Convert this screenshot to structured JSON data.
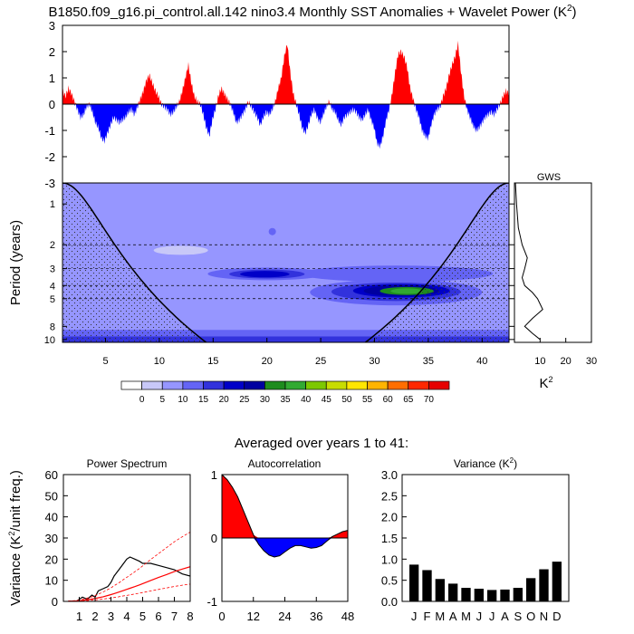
{
  "title": "B1850.f09_g16.pi_control.all.142 nino3.4 Monthly SST Anomalies + Wavelet Power (K",
  "title_sup": "2",
  "title_end": ")",
  "subtitle": "Averaged over years 1 to 41:",
  "colors": {
    "positive": "#ff0000",
    "negative": "#0000ff",
    "black": "#000000"
  },
  "chart_data": [
    {
      "type": "area",
      "name": "sst_anomaly_timeseries",
      "xlim": [
        1,
        42.5
      ],
      "ylim": [
        -3,
        3
      ],
      "yticks": [
        "3",
        "2",
        "1",
        "0",
        "-1",
        "-2",
        "-3"
      ],
      "y": [
        0.5,
        0.3,
        0.6,
        0.4,
        0.1,
        -0.2,
        -0.5,
        -0.4,
        -0.1,
        0.0,
        -0.3,
        -0.7,
        -0.9,
        -1.3,
        -1.4,
        -1.1,
        -0.8,
        -0.5,
        -0.6,
        -0.7,
        -0.6,
        -0.5,
        -0.3,
        -0.2,
        -0.4,
        -0.1,
        0.2,
        0.5,
        0.9,
        1.1,
        0.8,
        0.5,
        0.3,
        0.0,
        -0.1,
        -0.2,
        -0.4,
        -0.3,
        -0.1,
        0.1,
        0.5,
        1.0,
        1.5,
        0.8,
        0.3,
        0.1,
        0.0,
        -0.4,
        -0.9,
        -1.2,
        -0.6,
        -0.2,
        0.3,
        0.6,
        0.4,
        0.2,
        0.0,
        -0.3,
        -0.7,
        -0.6,
        -0.4,
        -0.2,
        0.1,
        -0.1,
        -0.3,
        -0.5,
        -0.8,
        -0.5,
        -0.3,
        -0.4,
        -0.2,
        0.1,
        0.6,
        1.0,
        1.8,
        2.3,
        1.2,
        0.4,
        0.0,
        -0.4,
        -0.9,
        -1.1,
        -0.8,
        -0.4,
        -0.2,
        -0.5,
        -0.7,
        -0.4,
        -0.1,
        0.1,
        -0.2,
        -0.3,
        -0.6,
        -0.8,
        -0.5,
        -0.4,
        -0.3,
        -0.2,
        -0.3,
        -0.5,
        -0.6,
        -0.4,
        -0.2,
        -0.6,
        -0.9,
        -1.5,
        -1.6,
        -1.2,
        -0.6,
        -0.2,
        0.4,
        1.2,
        1.9,
        2.0,
        1.8,
        1.4,
        0.6,
        0.2,
        -0.2,
        -0.5,
        -1.0,
        -1.2,
        -1.3,
        -0.8,
        -0.4,
        -0.2,
        -0.1,
        0.3,
        0.6,
        1.1,
        1.5,
        1.8,
        2.3,
        1.2,
        0.3,
        -0.2,
        -0.5,
        -0.8,
        -1.0,
        -0.9,
        -0.7,
        -0.5,
        -0.4,
        -0.3,
        -0.4,
        -0.2,
        0.0,
        0.3,
        0.5,
        0.4
      ]
    },
    {
      "type": "heatmap",
      "name": "wavelet_power",
      "xlabel": "",
      "ylabel": "Period (years)",
      "xticks": [
        5,
        10,
        15,
        20,
        25,
        30,
        35,
        40
      ],
      "yticks": [
        1,
        2,
        3,
        4,
        5,
        8,
        10
      ],
      "xlim": [
        1,
        42.5
      ],
      "ylim": [
        0.7,
        10.5
      ],
      "dashed_periods": [
        2,
        3,
        4,
        5
      ],
      "contours": [
        {
          "level": 10,
          "cx": 20.0,
          "cy": 3.3,
          "rx": 5.5,
          "ry": 0.35
        },
        {
          "level": 10,
          "cx": 32.0,
          "cy": 3.3,
          "rx": 9.0,
          "ry": 0.45
        },
        {
          "level": 10,
          "cx": 32.0,
          "cy": 4.6,
          "rx": 8.0,
          "ry": 1.0
        },
        {
          "level": 15,
          "cx": 20.0,
          "cy": 3.3,
          "rx": 3.5,
          "ry": 0.25
        },
        {
          "level": 15,
          "cx": 32.0,
          "cy": 4.5,
          "rx": 6.0,
          "ry": 0.7
        },
        {
          "level": 20,
          "cx": 19.8,
          "cy": 3.3,
          "rx": 2.3,
          "ry": 0.18
        },
        {
          "level": 20,
          "cx": 32.5,
          "cy": 4.4,
          "rx": 4.5,
          "ry": 0.5
        },
        {
          "level": 25,
          "cx": 32.5,
          "cy": 4.4,
          "rx": 3.5,
          "ry": 0.4
        },
        {
          "level": 30,
          "cx": 33.0,
          "cy": 4.4,
          "rx": 2.5,
          "ry": 0.3
        },
        {
          "level": 35,
          "cx": 33.0,
          "cy": 4.4,
          "rx": 1.5,
          "ry": 0.2
        }
      ]
    },
    {
      "type": "line",
      "name": "global_wavelet_spectrum",
      "title": "GWS",
      "xlabel": "K",
      "xlabel_sup": "2",
      "xticks": [
        10,
        20,
        30
      ],
      "xlim": [
        0,
        30
      ],
      "periods": [
        0.7,
        1,
        1.5,
        2,
        2.5,
        3,
        3.5,
        4,
        4.5,
        5,
        6,
        7,
        8,
        9,
        10
      ],
      "values": [
        0.4,
        0.8,
        1.5,
        3,
        5,
        4,
        3,
        4,
        7,
        9,
        11,
        7,
        4,
        7,
        10
      ]
    },
    {
      "type": "line",
      "name": "power_spectrum",
      "title": "Power Spectrum",
      "xlabel": "",
      "ylabel": "Variance (K",
      "ylabel_sup": "2",
      "ylabel_end": "/unit freq.)",
      "xlim": [
        0,
        8
      ],
      "ylim": [
        0,
        60
      ],
      "xticks": [
        "1",
        "2",
        "3",
        "4",
        "5",
        "6",
        "7",
        "8"
      ],
      "yticks": [
        "0",
        "10",
        "20",
        "30",
        "40",
        "50",
        "60"
      ],
      "x": [
        0.3,
        0.8,
        1.0,
        1.2,
        1.5,
        1.8,
        2.0,
        2.2,
        2.5,
        2.8,
        3.0,
        3.2,
        3.5,
        3.8,
        4.0,
        4.2,
        4.5,
        4.8,
        5.0,
        5.5,
        6.0,
        6.5,
        7.0,
        7.5,
        8.0
      ],
      "series": [
        {
          "name": "spectrum",
          "color": "#000000",
          "values": [
            0,
            0,
            1,
            2,
            1,
            3,
            2,
            5,
            6,
            7,
            9,
            12,
            15,
            18,
            20,
            21,
            20,
            19,
            18,
            18,
            17,
            16,
            15,
            13,
            12
          ]
        },
        {
          "name": "red_noise",
          "color": "#ff0000",
          "values": [
            0.1,
            0.2,
            0.3,
            0.5,
            0.8,
            1.1,
            1.4,
            1.7,
            2.2,
            2.8,
            3.2,
            3.7,
            4.4,
            5.2,
            5.7,
            6.2,
            7.0,
            7.8,
            8.4,
            9.9,
            11.3,
            12.7,
            14.1,
            15.3,
            16.4
          ]
        },
        {
          "name": "upper_95",
          "color": "#ff0000",
          "dashed": true,
          "values": [
            0.2,
            0.4,
            0.6,
            1.0,
            1.6,
            2.2,
            2.8,
            3.4,
            4.4,
            5.6,
            6.4,
            7.4,
            8.8,
            10.4,
            11.4,
            12.4,
            14.0,
            15.6,
            16.8,
            19.8,
            22.6,
            25.4,
            28.2,
            30.6,
            32.8
          ]
        },
        {
          "name": "lower_5",
          "color": "#ff0000",
          "dashed": true,
          "values": [
            0.05,
            0.1,
            0.15,
            0.25,
            0.4,
            0.55,
            0.7,
            0.85,
            1.1,
            1.4,
            1.6,
            1.85,
            2.2,
            2.6,
            2.85,
            3.1,
            3.5,
            3.9,
            4.2,
            4.95,
            5.65,
            6.35,
            7.05,
            7.65,
            8.2
          ]
        }
      ]
    },
    {
      "type": "area",
      "name": "autocorrelation",
      "title": "Autocorrelation",
      "xlim": [
        0,
        48
      ],
      "ylim": [
        -1,
        1
      ],
      "xticks": [
        "0",
        "12",
        "24",
        "36",
        "48"
      ],
      "yticks": [
        "1",
        "0",
        "-1"
      ],
      "x": [
        0,
        2,
        4,
        6,
        8,
        10,
        12,
        14,
        16,
        18,
        20,
        22,
        24,
        26,
        28,
        30,
        32,
        34,
        36,
        38,
        40,
        42,
        44,
        46,
        48
      ],
      "values": [
        1.0,
        0.92,
        0.8,
        0.65,
        0.45,
        0.25,
        0.05,
        -0.1,
        -0.2,
        -0.27,
        -0.3,
        -0.28,
        -0.22,
        -0.16,
        -0.12,
        -0.12,
        -0.14,
        -0.16,
        -0.15,
        -0.12,
        -0.05,
        0.02,
        0.06,
        0.1,
        0.12
      ]
    },
    {
      "type": "bar",
      "name": "monthly_variance",
      "title": "Variance (K",
      "title_sup": "2",
      "title_end": ")",
      "ylim": [
        0,
        3.0
      ],
      "yticks": [
        "0.0",
        "0.5",
        "1.0",
        "1.5",
        "2.0",
        "2.5",
        "3.0"
      ],
      "categories": [
        "J",
        "F",
        "M",
        "A",
        "M",
        "J",
        "J",
        "A",
        "S",
        "O",
        "N",
        "D"
      ],
      "values": [
        0.87,
        0.74,
        0.53,
        0.42,
        0.32,
        0.3,
        0.27,
        0.28,
        0.32,
        0.55,
        0.76,
        0.94
      ]
    }
  ],
  "colorbar": {
    "labels": [
      "0",
      "5",
      "10",
      "15",
      "20",
      "25",
      "30",
      "35",
      "40",
      "45",
      "50",
      "55",
      "60",
      "65",
      "70"
    ],
    "colors": [
      "#ffffff",
      "#c8c8f8",
      "#9696ff",
      "#6464f5",
      "#3232dc",
      "#0000c8",
      "#0000a0",
      "#1e8c1e",
      "#32aa32",
      "#7dc800",
      "#c8dc00",
      "#ffe600",
      "#ffb400",
      "#ff6e00",
      "#ff2800",
      "#e60000"
    ]
  }
}
